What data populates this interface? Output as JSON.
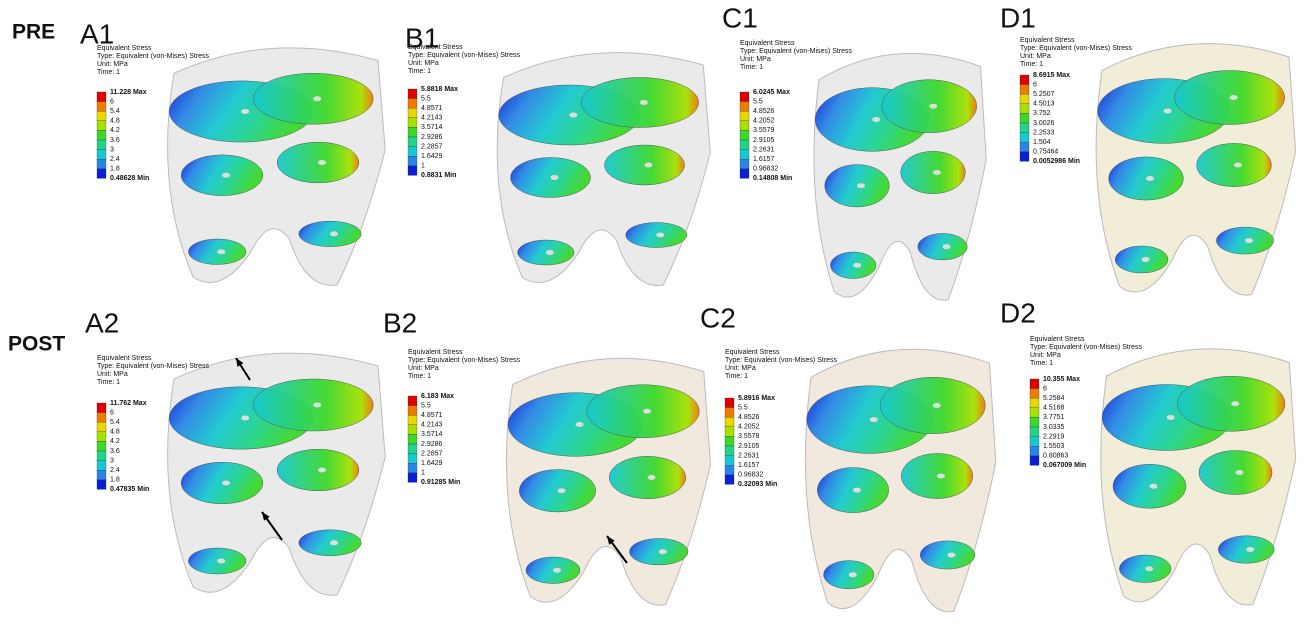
{
  "rows": [
    "PRE",
    "POST"
  ],
  "colormap": [
    "#e00000",
    "#ee7a00",
    "#e8d800",
    "#a8e000",
    "#3cd82a",
    "#22d48a",
    "#18c8d0",
    "#2a86e6",
    "#0a1ed6"
  ],
  "panels": [
    {
      "label": "A1",
      "legend": {
        "title": "Equivalent Stress",
        "type": "Type: Equivalent (von-Mises) Stress",
        "unit": "Unit: MPa",
        "time": "Time: 1",
        "levels": [
          "11.228 Max",
          "6",
          "5.4",
          "4.8",
          "4.2",
          "3.6",
          "3",
          "2.4",
          "1.8",
          "0.48628 Min"
        ]
      }
    },
    {
      "label": "B1",
      "legend": {
        "title": "Equivalent Stress",
        "type": "Type: Equivalent (von-Mises) Stress",
        "unit": "Unit: MPa",
        "time": "Time: 1",
        "levels": [
          "5.8818 Max",
          "5.5",
          "4.8571",
          "4.2143",
          "3.5714",
          "2.9286",
          "2.2857",
          "1.6429",
          "1",
          "0.8831 Min"
        ]
      }
    },
    {
      "label": "C1",
      "legend": {
        "title": "Equivalent Stress",
        "type": "Type: Equivalent (von-Mises) Stress",
        "unit": "Unit: MPa",
        "time": "Time: 1",
        "levels": [
          "6.0245 Max",
          "5.5",
          "4.8526",
          "4.2052",
          "3.5579",
          "2.9105",
          "2.2631",
          "1.6157",
          "0.96832",
          "0.14808 Min"
        ]
      }
    },
    {
      "label": "D1",
      "legend": {
        "title": "Equivalent Stress",
        "type": "Type: Equivalent (von-Mises) Stress",
        "unit": "Unit: MPa",
        "time": "Time: 1",
        "levels": [
          "8.6915 Max",
          "6",
          "5.2507",
          "4.5013",
          "3.752",
          "3.0026",
          "2.2533",
          "1.504",
          "0.75464",
          "0.0052986 Min"
        ]
      }
    },
    {
      "label": "A2",
      "legend": {
        "title": "Equivalent Stress",
        "type": "Type: Equivalent (von-Mises) Stress",
        "unit": "Unit: MPa",
        "time": "Time: 1",
        "levels": [
          "11.762 Max",
          "6",
          "5.4",
          "4.8",
          "4.2",
          "3.6",
          "3",
          "2.4",
          "1.8",
          "0.47835 Min"
        ]
      }
    },
    {
      "label": "B2",
      "legend": {
        "title": "Equivalent Stress",
        "type": "Type: Equivalent (von-Mises) Stress",
        "unit": "Unit: MPa",
        "time": "Time: 1",
        "levels": [
          "6.183 Max",
          "5.5",
          "4.8571",
          "4.2143",
          "3.5714",
          "2.9286",
          "2.2857",
          "1.6429",
          "1",
          "0.91285 Min"
        ]
      }
    },
    {
      "label": "C2",
      "legend": {
        "title": "Equivalent Stress",
        "type": "Type: Equivalent (von-Mises) Stress",
        "unit": "Unit: MPa",
        "time": "Time: 1",
        "levels": [
          "5.8916 Max",
          "5.5",
          "4.8526",
          "4.2052",
          "3.5578",
          "2.9105",
          "2.2631",
          "1.6157",
          "0.96832",
          "0.32093 Min"
        ]
      }
    },
    {
      "label": "D2",
      "legend": {
        "title": "Equivalent Stress",
        "type": "Type: Equivalent (von-Mises) Stress",
        "unit": "Unit: MPa",
        "time": "Time: 1",
        "levels": [
          "10.355 Max",
          "6",
          "5.2584",
          "4.5168",
          "3.7751",
          "3.0335",
          "2.2919",
          "1.5503",
          "0.80863",
          "0.067009 Min"
        ]
      }
    }
  ]
}
